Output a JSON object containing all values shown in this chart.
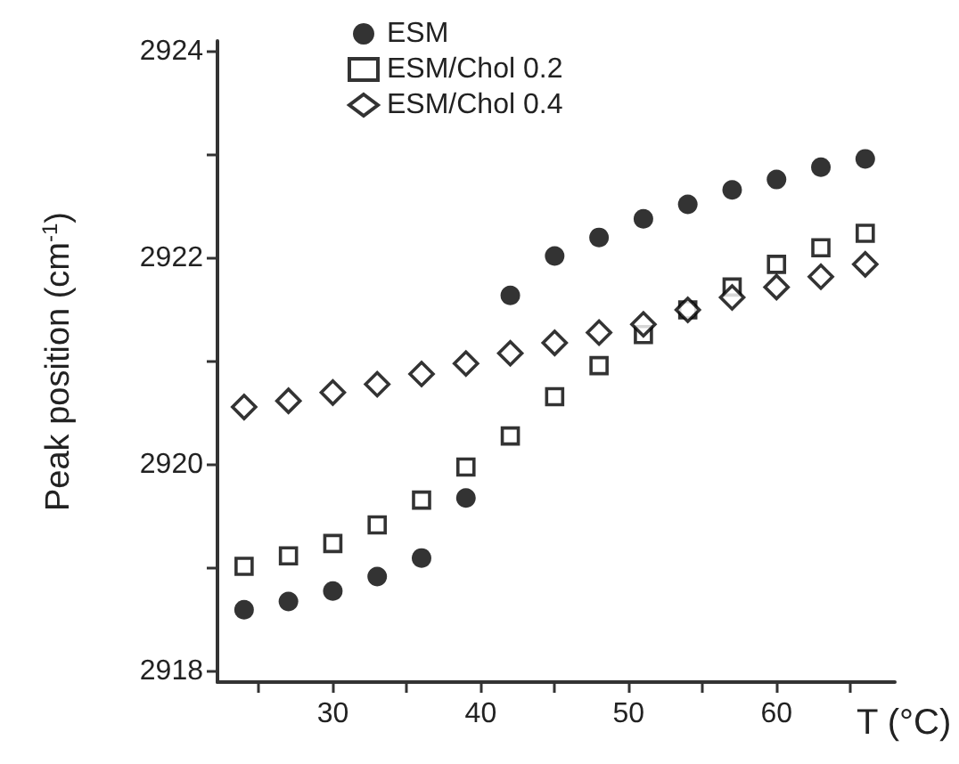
{
  "chart_data": {
    "type": "scatter",
    "xlabel": "T (°C)",
    "ylabel": "Peak position (cm$^{-1}$)",
    "x": [
      24,
      27,
      30,
      33,
      36,
      39,
      42,
      45,
      48,
      51,
      54,
      57,
      60,
      63,
      66
    ],
    "series": [
      {
        "name": "ESM",
        "color": "#000000",
        "marker": "circle",
        "values": [
          2918.6,
          2918.68,
          2918.78,
          2918.92,
          2919.1,
          2919.68,
          2921.64,
          2922.02,
          2922.2,
          2922.38,
          2922.52,
          2922.66,
          2922.76,
          2922.88,
          2922.96
        ]
      },
      {
        "name": "ESM/Chol 0.2",
        "color": "#000000",
        "marker": "square",
        "values": [
          2919.02,
          2919.12,
          2919.24,
          2919.42,
          2919.66,
          2919.98,
          2920.28,
          2920.66,
          2920.96,
          2921.26,
          2921.5,
          2921.72,
          2921.94,
          2922.1,
          2922.24
        ]
      },
      {
        "name": "ESM/Chol 0.4",
        "color": "#000000",
        "marker": "diamond",
        "values": [
          2920.56,
          2920.62,
          2920.7,
          2920.78,
          2920.88,
          2920.98,
          2921.08,
          2921.18,
          2921.28,
          2921.36,
          2921.5,
          2921.62,
          2921.72,
          2921.82,
          2921.94
        ]
      }
    ],
    "xlim": [
      22.2,
      68
    ],
    "ylim": [
      2917.9,
      2924.1
    ],
    "xticks": [
      {
        "value": 25,
        "label": null
      },
      30,
      {
        "value": 35,
        "label": null
      },
      40,
      {
        "value": 45,
        "label": null
      },
      50,
      {
        "value": 55,
        "label": null
      },
      60,
      {
        "value": 65,
        "label": null
      }
    ],
    "yticks": [
      2918,
      {
        "value": 2919,
        "label": null
      },
      2920,
      {
        "value": 2921,
        "label": null
      },
      2922,
      {
        "value": 2923,
        "label": null
      },
      2924
    ],
    "grid": false,
    "legend": "top left"
  }
}
